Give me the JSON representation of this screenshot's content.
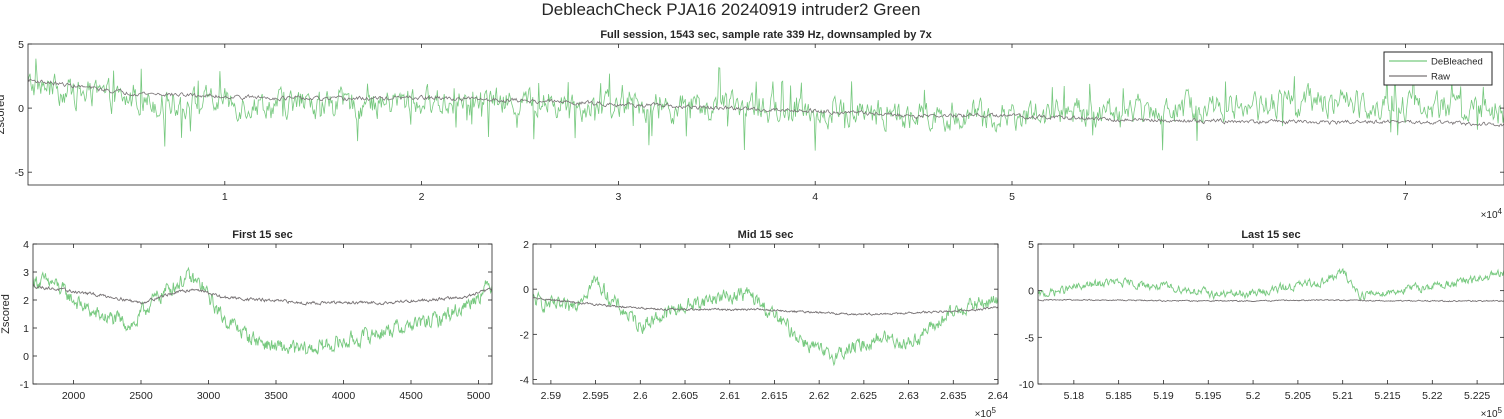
{
  "figure": {
    "title": "DebleachCheck PJA16 20240919  intruder2 Green"
  },
  "colors": {
    "debleached": "#77c97f",
    "raw": "#797476",
    "axis": "#262626",
    "grid_bg": "#ffffff"
  },
  "chart_data": [
    {
      "type": "line",
      "title": "Full session, 1543 sec, sample rate 339 Hz, downsampled by 7x",
      "xlabel": "",
      "ylabel": "Zscored",
      "xlim": [
        0,
        75000
      ],
      "ylim": [
        -6,
        5
      ],
      "xticks": [
        10000,
        20000,
        30000,
        40000,
        50000,
        60000,
        70000
      ],
      "xtick_labels": [
        "1",
        "2",
        "3",
        "4",
        "5",
        "6",
        "7"
      ],
      "x_exponent": "×10",
      "x_exponent_power": "4",
      "yticks": [
        -5,
        0,
        5
      ],
      "ytick_labels": [
        "-5",
        "0",
        "5"
      ],
      "legend": {
        "position": "top-right",
        "entries": [
          "DeBleached",
          "Raw"
        ]
      },
      "series": [
        {
          "name": "DeBleached",
          "x": [
            0,
            5000,
            10000,
            15000,
            20000,
            25000,
            30000,
            35000,
            40000,
            45000,
            50000,
            55000,
            60000,
            65000,
            70000,
            75000
          ],
          "values": [
            1.8,
            0.6,
            0.4,
            0.2,
            0.5,
            0.4,
            0.2,
            0.0,
            -0.2,
            -0.6,
            -0.6,
            -0.3,
            0.1,
            0.5,
            0.2,
            -0.2
          ],
          "amplitude": 2.0
        },
        {
          "name": "Raw",
          "x": [
            0,
            5000,
            10000,
            15000,
            20000,
            25000,
            30000,
            35000,
            40000,
            45000,
            50000,
            55000,
            60000,
            65000,
            70000,
            75000
          ],
          "values": [
            2.2,
            1.2,
            0.9,
            0.7,
            0.8,
            0.6,
            0.3,
            0.0,
            -0.2,
            -0.6,
            -0.6,
            -0.9,
            -1.0,
            -1.1,
            -1.1,
            -1.3
          ],
          "amplitude": 0.3
        }
      ]
    },
    {
      "type": "line",
      "title": "First 15 sec",
      "xlabel": "",
      "ylabel": "Zscored",
      "xlim": [
        1700,
        5100
      ],
      "ylim": [
        -1,
        4
      ],
      "xticks": [
        2000,
        2500,
        3000,
        3500,
        4000,
        4500,
        5000
      ],
      "xtick_labels": [
        "2000",
        "2500",
        "3000",
        "3500",
        "4000",
        "4500",
        "5000"
      ],
      "yticks": [
        -1,
        0,
        1,
        2,
        3,
        4
      ],
      "ytick_labels": [
        "-1",
        "0",
        "1",
        "2",
        "3",
        "4"
      ],
      "series": [
        {
          "name": "DeBleached",
          "x": [
            1700,
            1850,
            2000,
            2150,
            2300,
            2450,
            2550,
            2700,
            2850,
            2950,
            3100,
            3300,
            3500,
            3700,
            3900,
            4100,
            4300,
            4500,
            4700,
            4900,
            5100
          ],
          "values": [
            2.7,
            2.6,
            2.0,
            1.5,
            1.3,
            1.1,
            1.8,
            2.4,
            2.8,
            2.5,
            1.4,
            0.7,
            0.3,
            0.2,
            0.4,
            0.6,
            0.9,
            1.1,
            1.3,
            1.8,
            2.6
          ],
          "amplitude": 0.5
        },
        {
          "name": "Raw",
          "x": [
            1700,
            2000,
            2300,
            2500,
            2700,
            2900,
            3100,
            3400,
            3700,
            4000,
            4300,
            4600,
            4900,
            5100
          ],
          "values": [
            2.5,
            2.3,
            2.1,
            1.9,
            2.2,
            2.4,
            2.1,
            2.0,
            1.9,
            1.9,
            1.9,
            2.0,
            2.1,
            2.4
          ],
          "amplitude": 0.1
        }
      ]
    },
    {
      "type": "line",
      "title": "Mid 15 sec",
      "xlabel": "",
      "ylabel": "",
      "xlim": [
        258800,
        264000
      ],
      "ylim": [
        -4.2,
        2
      ],
      "xticks": [
        259000,
        259500,
        260000,
        260500,
        261000,
        261500,
        262000,
        262500,
        263000,
        263500,
        264000
      ],
      "xtick_labels": [
        "2.59",
        "2.595",
        "2.6",
        "2.605",
        "2.61",
        "2.615",
        "2.62",
        "2.625",
        "2.63",
        "2.635",
        "2.64"
      ],
      "x_exponent": "×10",
      "x_exponent_power": "5",
      "yticks": [
        -4,
        -2,
        0,
        2
      ],
      "ytick_labels": [
        "-4",
        "-2",
        "0",
        "2"
      ],
      "series": [
        {
          "name": "DeBleached",
          "x": [
            258800,
            259200,
            259500,
            259700,
            260000,
            260400,
            260800,
            261200,
            261500,
            261800,
            262100,
            262400,
            262700,
            263000,
            263300,
            263600,
            264000
          ],
          "values": [
            -0.5,
            -0.9,
            0.4,
            -0.6,
            -1.6,
            -0.9,
            -0.4,
            -0.2,
            -1.2,
            -2.2,
            -3.0,
            -2.6,
            -2.1,
            -2.4,
            -1.6,
            -0.8,
            -0.5
          ],
          "amplitude": 0.6
        },
        {
          "name": "Raw",
          "x": [
            258800,
            259300,
            259800,
            260300,
            260800,
            261300,
            261800,
            262300,
            262800,
            263300,
            263800,
            264000
          ],
          "values": [
            -0.4,
            -0.6,
            -0.8,
            -0.9,
            -0.9,
            -0.9,
            -1.0,
            -1.1,
            -1.1,
            -1.0,
            -0.9,
            -0.8
          ],
          "amplitude": 0.08
        }
      ]
    },
    {
      "type": "line",
      "title": "Last 15 sec",
      "xlabel": "",
      "ylabel": "",
      "xlim": [
        517600,
        522800
      ],
      "ylim": [
        -10,
        5
      ],
      "xticks": [
        518000,
        518500,
        519000,
        519500,
        520000,
        520500,
        521000,
        521500,
        522000,
        522500
      ],
      "xtick_labels": [
        "5.18",
        "5.185",
        "5.19",
        "5.195",
        "5.2",
        "5.205",
        "5.21",
        "5.215",
        "5.22",
        "5.225"
      ],
      "x_exponent": "×10",
      "x_exponent_power": "5",
      "yticks": [
        -10,
        -5,
        0,
        5
      ],
      "ytick_labels": [
        "-10",
        "-5",
        "0",
        "5"
      ],
      "series": [
        {
          "name": "DeBleached",
          "x": [
            517600,
            518000,
            518400,
            518800,
            519200,
            519600,
            520000,
            520400,
            520800,
            521000,
            521200,
            521600,
            522000,
            522400,
            522800
          ],
          "values": [
            -0.5,
            0.3,
            0.9,
            0.6,
            0.2,
            -0.4,
            -0.3,
            0.4,
            1.0,
            2.0,
            -0.5,
            0.0,
            0.5,
            1.0,
            1.8
          ],
          "amplitude": 0.8
        },
        {
          "name": "Raw",
          "x": [
            517600,
            518400,
            519200,
            520000,
            520800,
            521600,
            522400,
            522800
          ],
          "values": [
            -1.0,
            -1.0,
            -1.1,
            -1.1,
            -1.0,
            -1.1,
            -1.1,
            -1.1
          ],
          "amplitude": 0.12
        }
      ]
    }
  ]
}
